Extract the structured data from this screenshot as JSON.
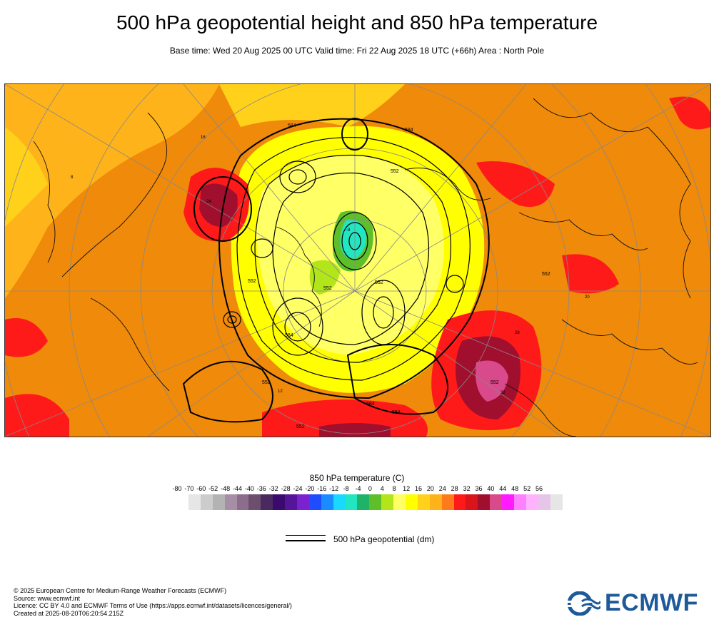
{
  "header": {
    "title": "500 hPa geopotential height and 850 hPa temperature",
    "subtitle": "Base time: Wed 20 Aug 2025 00 UTC Valid time: Fri 22 Aug 2025 18 UTC (+66h) Area : North Pole"
  },
  "map": {
    "contour_labels": [
      "584",
      "584",
      "584",
      "584",
      "584",
      "552",
      "552",
      "552",
      "552",
      "552",
      "552",
      "552",
      "552"
    ],
    "temperature_labels": [
      "-8",
      "16",
      "24",
      "28",
      "32",
      "12",
      "8",
      "20"
    ]
  },
  "colorbar": {
    "title": "850 hPa temperature (C)",
    "ticks": [
      "-80",
      "-70",
      "-60",
      "-52",
      "-48",
      "-44",
      "-40",
      "-36",
      "-32",
      "-28",
      "-24",
      "-20",
      "-16",
      "-12",
      "-8",
      "-4",
      "0",
      "4",
      "8",
      "12",
      "16",
      "20",
      "24",
      "28",
      "32",
      "36",
      "40",
      "44",
      "48",
      "52",
      "56"
    ],
    "colors": [
      "#e6e6e6",
      "#cccccc",
      "#b3b3b3",
      "#a78ea7",
      "#8c6e8c",
      "#6e4e6e",
      "#4a2a5e",
      "#3a0a6e",
      "#55159a",
      "#7a22cf",
      "#1f4cff",
      "#1a8cff",
      "#1ad9ff",
      "#22e6c0",
      "#1fb36a",
      "#5fbf2a",
      "#b3e61a",
      "#ffff66",
      "#ffff00",
      "#ffd11a",
      "#ffb31a",
      "#ff7a1a",
      "#ff1a1a",
      "#d9141a",
      "#a0102e",
      "#d94a8c",
      "#ff1aff",
      "#ff80ff",
      "#ffb3ff",
      "#e6c6e6",
      "#e6e6e6"
    ]
  },
  "legend": {
    "label": "500 hPa geopotential (dm)"
  },
  "footer": {
    "line1": "© 2025 European Centre for Medium-Range Weather Forecasts (ECMWF)",
    "line2": "Source: www.ecmwf.int",
    "line3": "Licence: CC BY 4.0 and ECMWF Terms of Use (https://apps.ecmwf.int/datasets/licences/general/)",
    "line4": "Created at 2025-08-20T06:20:54.215Z"
  },
  "logo": {
    "text": "ECMWF",
    "color": "#1e5a9a"
  }
}
